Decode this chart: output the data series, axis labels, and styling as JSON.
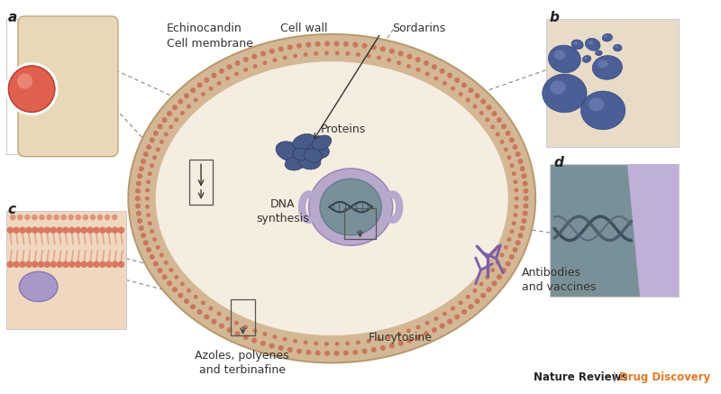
{
  "bg_color": "#ffffff",
  "cell_wall_color": "#d4b896",
  "cell_wall_edge": "#b89a70",
  "cell_interior_color": "#f5ede0",
  "mem_dot_color": "#c8785a",
  "nucleus_outer_color": "#b8a8cc",
  "nucleus_inner_color": "#7a9098",
  "protein_color": "#4a5a88",
  "antibody_color": "#7B5EA7",
  "label_color": "#333333",
  "orange_color": "#E87722",
  "panel_a_bg": "#e8d8b8",
  "panel_b_bg": "#e8dcc8",
  "panel_c_bg": "#f0d8c0",
  "panel_d_bg_main": "#7a9098",
  "panel_d_bg_band": "#c0b0d8",
  "spore_color": "#3a5090",
  "spore_edge": "#2a4080",
  "red_cell_color": "#e06050",
  "dna_color": "#445566",
  "footer_black": "#222222",
  "footer_orange": "#E87722",
  "labels": {
    "echinocandin": "Echinocandin",
    "cell_wall": "Cell wall",
    "sordarins": "Sordarins",
    "cell_membrane": "Cell membrane",
    "proteins": "Proteins",
    "dna_synthesis": "DNA\nsynthesis",
    "azoles": "Azoles, polyenes\nand terbinafine",
    "flucytosine": "Flucytosine",
    "antibodies": "Antibodies\nand vaccines"
  }
}
